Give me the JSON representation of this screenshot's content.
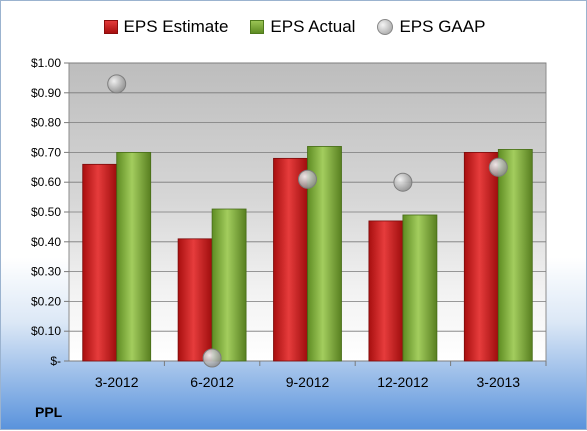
{
  "legend": {
    "estimate_label": "EPS Estimate",
    "actual_label": "EPS Actual",
    "gaap_label": "EPS GAAP"
  },
  "ticker": "PPL",
  "colors": {
    "estimate": "#c81d1d",
    "actual": "#7aa63a",
    "gaap": "#b4b4b4"
  },
  "chart_data": {
    "type": "bar",
    "categories": [
      "3-2012",
      "6-2012",
      "9-2012",
      "12-2012",
      "3-2013"
    ],
    "series": [
      {
        "name": "EPS Estimate",
        "values": [
          0.66,
          0.41,
          0.68,
          0.47,
          0.7
        ]
      },
      {
        "name": "EPS Actual",
        "values": [
          0.7,
          0.51,
          0.72,
          0.49,
          0.71
        ]
      },
      {
        "name": "EPS GAAP",
        "values": [
          0.93,
          0.01,
          0.61,
          0.6,
          0.65
        ]
      }
    ],
    "ylim": [
      0,
      1.0
    ],
    "yticks": [
      {
        "value": 0,
        "label": "$-"
      },
      {
        "value": 0.1,
        "label": "$0.10"
      },
      {
        "value": 0.2,
        "label": "$0.20"
      },
      {
        "value": 0.3,
        "label": "$0.30"
      },
      {
        "value": 0.4,
        "label": "$0.40"
      },
      {
        "value": 0.5,
        "label": "$0.50"
      },
      {
        "value": 0.6,
        "label": "$0.60"
      },
      {
        "value": 0.7,
        "label": "$0.70"
      },
      {
        "value": 0.8,
        "label": "$0.80"
      },
      {
        "value": 0.9,
        "label": "$0.90"
      },
      {
        "value": 1.0,
        "label": "$1.00"
      }
    ],
    "grid": true,
    "legend_position": "top"
  }
}
